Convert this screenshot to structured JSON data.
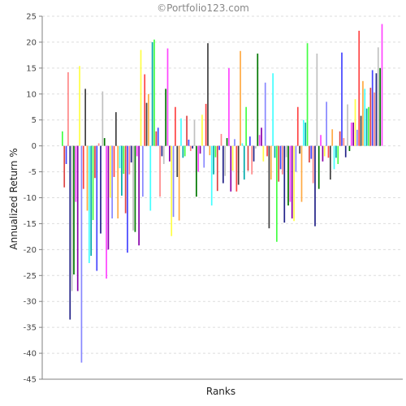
{
  "watermark": "©Portfolio123.com",
  "colors": {
    "background": "#ffffff",
    "grid": "#dddddd",
    "axis": "#808080",
    "palette": [
      "#ff4444",
      "#4444ff",
      "#ffff44",
      "#44ff44",
      "#ff44ff",
      "#44ffff",
      "#c0c0c0",
      "#404040",
      "#ff8888",
      "#8888ff",
      "#dd4444",
      "#8800aa",
      "#00aaaa",
      "#007700",
      "#ffaa44",
      "#222288"
    ]
  },
  "chart_data": {
    "type": "bar",
    "title": "",
    "xlabel": "Ranks",
    "ylabel": "Annualized Return %",
    "ylim": [
      -45,
      25
    ],
    "yticks": [
      25,
      20,
      15,
      10,
      5,
      0,
      -5,
      -10,
      -15,
      -20,
      -25,
      -30,
      -35,
      -40,
      -45
    ],
    "grid": true,
    "legend": "none",
    "values": [
      2.8,
      -8.0,
      -3.5,
      14.2,
      -33.5,
      -28.0,
      -24.8,
      -10.8,
      -28.0,
      15.4,
      -41.8,
      -8.3,
      11.0,
      -12.5,
      -22.6,
      -21.2,
      -14.3,
      -6.2,
      -24.1,
      0.5,
      -16.9,
      10.5,
      1.5,
      -25.6,
      -20.0,
      -10.0,
      -14.0,
      -6.0,
      6.5,
      -14.0,
      -4.3,
      -9.6,
      -5.4,
      -13.0,
      -20.6,
      -5.5,
      -3.2,
      -16.3,
      -16.6,
      -2.0,
      -19.2,
      18.5,
      -9.8,
      13.8,
      8.3,
      10.0,
      -12.5,
      20.0,
      20.5,
      2.8,
      3.5,
      -9.8,
      -2.0,
      -3.5,
      11.0,
      18.8,
      -3.0,
      -17.4,
      -13.7,
      7.5,
      -6.0,
      -14.4,
      5.3,
      -2.3,
      -2.0,
      5.8,
      1.2,
      -1.0,
      -0.5,
      5.0,
      -9.8,
      -5.0,
      -1.5,
      6.0,
      -4.2,
      8.1,
      19.8,
      -1.8,
      -11.5,
      -5.5,
      -2.2,
      -8.7,
      -0.8,
      2.3,
      -7.2,
      -5.8,
      1.5,
      15.0,
      -8.8,
      -4.8,
      1.3,
      -8.8,
      -7.5,
      18.3,
      0.5,
      -6.5,
      7.5,
      -4.8,
      1.8,
      -5.5,
      -3.0,
      -0.5,
      17.8,
      2.1,
      3.5,
      -3.0,
      12.2,
      -2.0,
      -15.9,
      -6.5,
      14.0,
      -2.3,
      -18.5,
      -6.9,
      -4.5,
      -5.5,
      -14.8,
      -2.2,
      -11.5,
      -10.8,
      -14.0,
      -14.5,
      -5.0,
      7.5,
      -1.5,
      -10.8,
      5.0,
      4.5,
      19.8,
      -3.2,
      -2.5,
      -7.2,
      -15.5,
      17.8,
      -8.3,
      2.1,
      -3.0,
      -2.0,
      8.5,
      -2.3,
      -6.5,
      3.2,
      -4.5,
      -2.3,
      -3.5,
      2.8,
      18.0,
      1.5,
      -2.2,
      8.0,
      -1.0,
      4.5,
      4.5,
      9.0,
      3.1,
      22.2,
      5.8,
      12.5,
      11.0,
      7.2,
      7.5,
      11.2,
      14.6,
      10.3,
      14.0,
      19.0,
      15.0,
      23.5
    ]
  }
}
